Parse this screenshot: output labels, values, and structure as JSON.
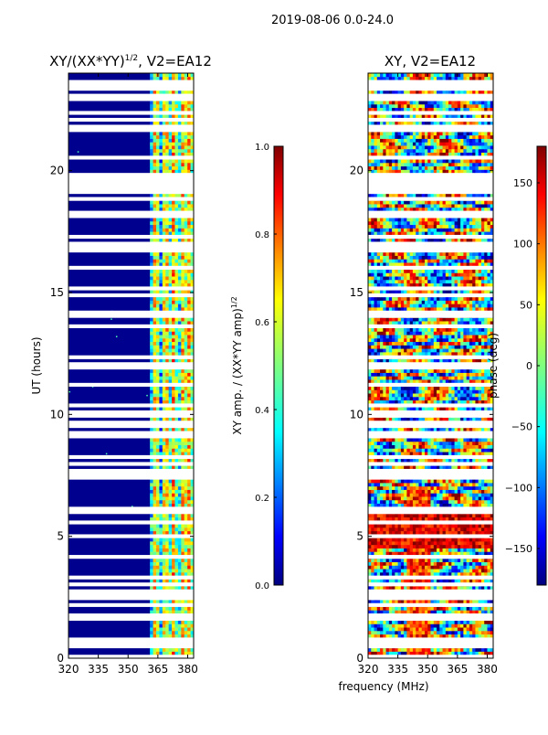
{
  "figure": {
    "suptitle": "2019-08-06 0.0-24.0",
    "xlabel": "frequency (MHz)"
  },
  "colors": {
    "jet": [
      "#00007f",
      "#0000ff",
      "#007fff",
      "#00ffff",
      "#7fff7f",
      "#ffff00",
      "#ff7f00",
      "#ff0000",
      "#7f0000"
    ],
    "background_amp": "#00008f",
    "frame": "#000000"
  },
  "chart_data": [
    {
      "type": "heatmap",
      "name": "amplitude",
      "title_main": "XY/(XX*YY)",
      "title_sup": "1/2",
      "title_rest": ", V2=EA12",
      "xlabel": "",
      "ylabel": "UT (hours)",
      "xlim": [
        320,
        383
      ],
      "ylim": [
        0,
        24
      ],
      "xticks": [
        320,
        335,
        350,
        365,
        380
      ],
      "yticks": [
        0,
        5,
        10,
        15,
        20
      ],
      "active_band_mhz": [
        361,
        383
      ],
      "bright_channels_mhz": [
        364,
        369,
        373,
        378,
        381
      ],
      "gap_hours": [
        [
          19.0,
          19.9
        ],
        [
          11.9,
          12.15
        ],
        [
          7.3,
          7.6
        ],
        [
          23.3,
          23.6
        ]
      ],
      "colorbar": {
        "label_main": "XY amp. / (XX*YY amp)",
        "label_sup": "1/2",
        "range": [
          0.0,
          1.0
        ],
        "ticks": [
          "0.0",
          "0.2",
          "0.4",
          "0.6",
          "0.8",
          "1.0"
        ]
      }
    },
    {
      "type": "heatmap",
      "name": "phase",
      "title": "XY, V2=EA12",
      "xlabel": "",
      "ylabel": "",
      "xlim": [
        320,
        383
      ],
      "ylim": [
        0,
        24
      ],
      "xticks": [
        320,
        335,
        350,
        365,
        380
      ],
      "yticks": [
        0,
        5,
        10,
        15,
        20
      ],
      "gap_hours": [
        [
          19.0,
          19.9
        ],
        [
          11.9,
          12.15
        ],
        [
          7.3,
          7.6
        ],
        [
          23.3,
          23.6
        ]
      ],
      "colorbar": {
        "label": "phase (deg)",
        "range": [
          -180,
          180
        ],
        "ticks": [
          "150",
          "100",
          "50",
          "0",
          "−50",
          "−100",
          "−150"
        ],
        "tick_values": [
          150,
          100,
          50,
          0,
          -50,
          -100,
          -150
        ]
      }
    }
  ]
}
